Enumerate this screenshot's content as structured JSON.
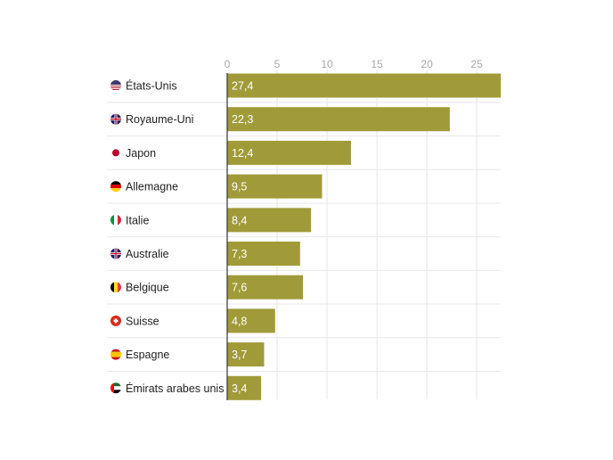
{
  "chart_data": {
    "type": "bar",
    "orientation": "horizontal",
    "categories": [
      "États-Unis",
      "Royaume-Uni",
      "Japon",
      "Allemagne",
      "Italie",
      "Australie",
      "Belgique",
      "Suisse",
      "Espagne",
      "Émirats arabes unis"
    ],
    "flags": [
      "us-flag-icon",
      "uk-flag-icon",
      "japan-flag-icon",
      "germany-flag-icon",
      "italy-flag-icon",
      "australia-flag-icon",
      "belgium-flag-icon",
      "switzerland-flag-icon",
      "spain-flag-icon",
      "uae-flag-icon"
    ],
    "values": [
      27.4,
      22.3,
      12.4,
      9.5,
      8.4,
      7.3,
      7.6,
      4.8,
      3.7,
      3.4
    ],
    "value_labels": [
      "27,4",
      "22,3",
      "12,4",
      "9,5",
      "8,4",
      "7,3",
      "7,6",
      "4,8",
      "3,7",
      "3,4"
    ],
    "xticks": [
      0,
      5,
      10,
      15,
      20,
      25
    ],
    "xtick_labels": [
      "0",
      "5",
      "10",
      "15",
      "20",
      "25"
    ],
    "xlim": [
      0,
      27.4
    ],
    "axis_position": "top",
    "grid": true,
    "bar_color": "#a09b38"
  }
}
